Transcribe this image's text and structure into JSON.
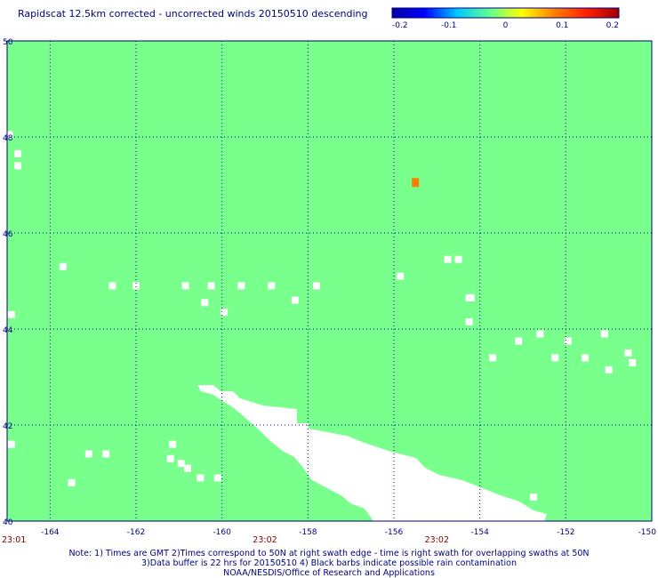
{
  "title": "Rapidscat 12.5km corrected - uncorrected winds 20150510 descending",
  "colorbar": {
    "labels": [
      "-0.2",
      "-0.1",
      "0",
      "0.1",
      "0.2"
    ],
    "min": -0.2,
    "max": 0.2,
    "stops": [
      "#0000a0",
      "#0000ff",
      "#00c8ff",
      "#60ff90",
      "#ffff00",
      "#ff8000",
      "#ff2000",
      "#a00000"
    ]
  },
  "map": {
    "lon_range": [
      -165,
      -150
    ],
    "lat_range": [
      40,
      50
    ],
    "lon_ticks": [
      -164,
      -162,
      -160,
      -158,
      -156,
      -154,
      -152,
      -150
    ],
    "lon_tick_labels": [
      "-164",
      "-162",
      "-160",
      "-158",
      "-156",
      "-154",
      "-152",
      "-150"
    ],
    "lat_ticks": [
      50,
      48,
      46,
      44,
      42,
      40
    ],
    "lat_tick_labels": [
      "50",
      "48",
      "46",
      "44",
      "42",
      "40"
    ],
    "time_labels": [
      "23:01",
      "23:02",
      "23:02"
    ],
    "time_label_lons": [
      -165,
      -159,
      -155
    ],
    "background_color": "#78ff8c",
    "missing_color": "#ffffff",
    "grid_color": "#0000a0",
    "missing_cells": [
      [
        -164.95,
        48.05
      ],
      [
        -164.75,
        47.65
      ],
      [
        -164.75,
        47.4
      ],
      [
        -163.7,
        45.3
      ],
      [
        -162.55,
        44.9
      ],
      [
        -162.0,
        44.9
      ],
      [
        -160.85,
        44.9
      ],
      [
        -160.4,
        44.55
      ],
      [
        -160.25,
        44.9
      ],
      [
        -159.95,
        44.35
      ],
      [
        -159.55,
        44.9
      ],
      [
        -158.85,
        44.9
      ],
      [
        -158.3,
        44.6
      ],
      [
        -157.8,
        44.9
      ],
      [
        -155.85,
        45.1
      ],
      [
        -154.75,
        45.45
      ],
      [
        -154.5,
        45.45
      ],
      [
        -154.25,
        44.65
      ],
      [
        -153.1,
        43.75
      ],
      [
        -152.6,
        43.9
      ],
      [
        -151.95,
        43.75
      ],
      [
        -151.1,
        43.9
      ],
      [
        -150.55,
        43.5
      ],
      [
        -154.25,
        44.15
      ],
      [
        -153.7,
        43.4
      ],
      [
        -152.25,
        43.4
      ],
      [
        -151.55,
        43.4
      ],
      [
        -151.0,
        43.15
      ],
      [
        -150.45,
        43.3
      ],
      [
        -164.9,
        44.3
      ],
      [
        -164.9,
        41.6
      ],
      [
        -162.7,
        41.4
      ],
      [
        -161.15,
        41.6
      ],
      [
        -161.2,
        41.3
      ],
      [
        -160.95,
        41.2
      ],
      [
        -163.1,
        41.4
      ],
      [
        -160.8,
        41.1
      ],
      [
        -160.5,
        40.9
      ],
      [
        -160.1,
        40.9
      ],
      [
        -156.7,
        40.8
      ],
      [
        -152.75,
        40.5
      ],
      [
        -154.2,
        44.65
      ],
      [
        -154.3,
        40.7
      ],
      [
        -156.7,
        40.75
      ],
      [
        -155.55,
        40.25
      ],
      [
        -155.3,
        40.15
      ],
      [
        -154.6,
        40.0
      ],
      [
        -163.5,
        40.8
      ]
    ],
    "highlight_cells": [
      {
        "lon": -155.5,
        "lat": 47.05,
        "color": "#ff8000"
      }
    ]
  },
  "footer": {
    "line1": "Note: 1) Times are GMT 2)Times correspond to 50N at right swath edge - time is right swath for overlapping swaths at 50N",
    "line2": "3)Data buffer is 22 hrs for 20150510 4) Black barbs indicate possible rain contamination",
    "line3": "NOAA/NESDIS/Office of Research and Applications"
  }
}
